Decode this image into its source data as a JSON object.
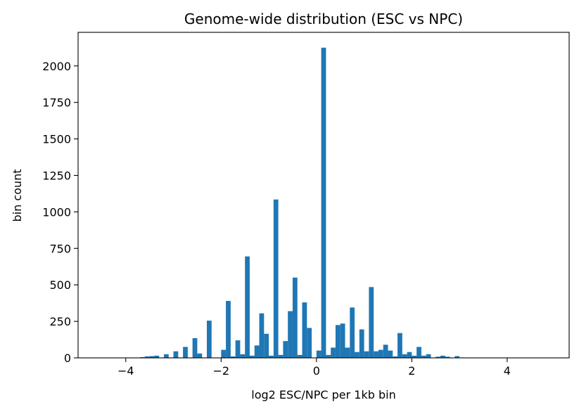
{
  "chart_data": {
    "type": "bar",
    "title": "Genome-wide distribution (ESC vs NPC)",
    "xlabel": "log2 ESC/NPC per 1kb bin",
    "ylabel": "bin count",
    "xlim": [
      -5,
      5.3
    ],
    "ylim": [
      0,
      2230
    ],
    "bin_width": 0.1,
    "x_ticks": [
      -4,
      -2,
      0,
      2,
      4
    ],
    "x_tick_labels": [
      "−4",
      "−2",
      "0",
      "2",
      "4"
    ],
    "y_ticks": [
      0,
      250,
      500,
      750,
      1000,
      1250,
      1500,
      1750,
      2000
    ],
    "y_tick_labels": [
      "0",
      "250",
      "500",
      "750",
      "1000",
      "1250",
      "1500",
      "1750",
      "2000"
    ],
    "grid": false,
    "series": [
      {
        "x": [
          -3.7,
          -3.6,
          -3.5,
          -3.4,
          -3.2,
          -3.0,
          -2.8,
          -2.6,
          -2.5,
          -2.3,
          -2.0,
          -1.9,
          -1.8,
          -1.7,
          -1.6,
          -1.5,
          -1.4,
          -1.3,
          -1.2,
          -1.1,
          -1.0,
          -0.9,
          -0.8,
          -0.7,
          -0.6,
          -0.5,
          -0.4,
          -0.3,
          -0.2,
          0.0,
          0.1,
          0.2,
          0.3,
          0.4,
          0.5,
          0.6,
          0.7,
          0.8,
          0.9,
          1.0,
          1.1,
          1.2,
          1.3,
          1.4,
          1.5,
          1.6,
          1.7,
          1.8,
          1.9,
          2.0,
          2.1,
          2.2,
          2.3,
          2.5,
          2.6,
          2.7,
          2.9
        ],
        "values": [
          5,
          10,
          12,
          15,
          25,
          45,
          75,
          135,
          30,
          255,
          55,
          390,
          10,
          120,
          25,
          695,
          15,
          85,
          305,
          165,
          15,
          1085,
          20,
          115,
          320,
          550,
          20,
          380,
          205,
          50,
          2125,
          20,
          70,
          225,
          235,
          70,
          345,
          40,
          195,
          45,
          485,
          45,
          55,
          90,
          50,
          10,
          170,
          25,
          40,
          15,
          75,
          15,
          25,
          8,
          15,
          8,
          12
        ]
      }
    ]
  }
}
